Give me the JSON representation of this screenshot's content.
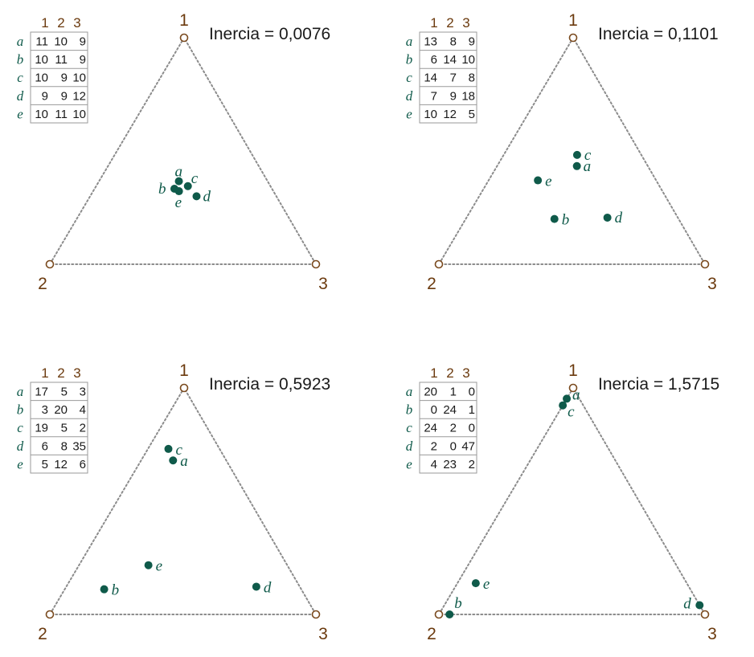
{
  "colors": {
    "point": "#0f5a4a",
    "vertex": "#7a4a1e",
    "edge": "#8c8c8c",
    "table_border": "#9a9a9a"
  },
  "column_headers": [
    "1",
    "2",
    "3"
  ],
  "vertex_labels": [
    "1",
    "2",
    "3"
  ],
  "panels": [
    {
      "title": "Inercia = 0,0076",
      "rows": [
        {
          "label": "a",
          "values": [
            "11",
            "10",
            "9"
          ]
        },
        {
          "label": "b",
          "values": [
            "10",
            "11",
            "9"
          ]
        },
        {
          "label": "c",
          "values": [
            "10",
            "9",
            "10"
          ]
        },
        {
          "label": "d",
          "values": [
            "9",
            "9",
            "12"
          ]
        },
        {
          "label": "e",
          "values": [
            "10",
            "11",
            "10"
          ]
        }
      ]
    },
    {
      "title": "Inercia = 0,1101",
      "rows": [
        {
          "label": "a",
          "values": [
            "13",
            "8",
            "9"
          ]
        },
        {
          "label": "b",
          "values": [
            "6",
            "14",
            "10"
          ]
        },
        {
          "label": "c",
          "values": [
            "14",
            "7",
            "8"
          ]
        },
        {
          "label": "d",
          "values": [
            "7",
            "9",
            "18"
          ]
        },
        {
          "label": "e",
          "values": [
            "10",
            "12",
            "5"
          ]
        }
      ]
    },
    {
      "title": "Inercia = 0,5923",
      "rows": [
        {
          "label": "a",
          "values": [
            "17",
            "5",
            "3"
          ]
        },
        {
          "label": "b",
          "values": [
            "3",
            "20",
            "4"
          ]
        },
        {
          "label": "c",
          "values": [
            "19",
            "5",
            "2"
          ]
        },
        {
          "label": "d",
          "values": [
            "6",
            "8",
            "35"
          ]
        },
        {
          "label": "e",
          "values": [
            "5",
            "12",
            "6"
          ]
        }
      ]
    },
    {
      "title": "Inercia = 1,5715",
      "rows": [
        {
          "label": "a",
          "values": [
            "20",
            "1",
            "0"
          ]
        },
        {
          "label": "b",
          "values": [
            "0",
            "24",
            "1"
          ]
        },
        {
          "label": "c",
          "values": [
            "24",
            "2",
            "0"
          ]
        },
        {
          "label": "d",
          "values": [
            "2",
            "0",
            "47"
          ]
        },
        {
          "label": "e",
          "values": [
            "4",
            "23",
            "2"
          ]
        }
      ]
    }
  ]
}
